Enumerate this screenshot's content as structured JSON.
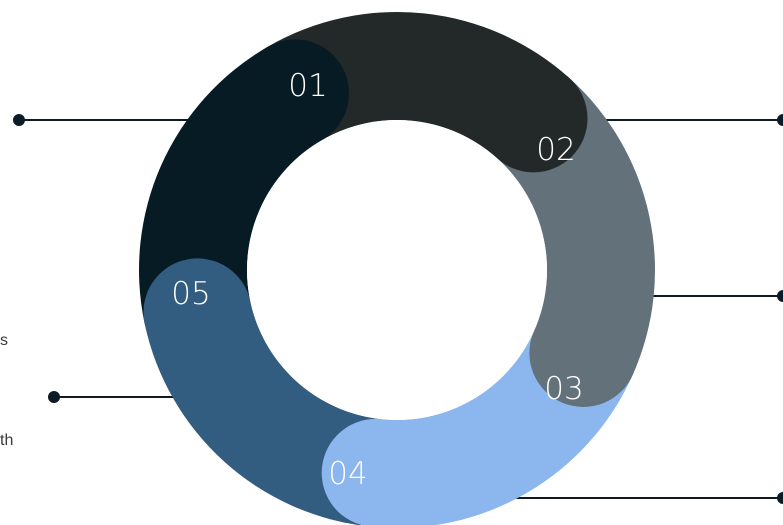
{
  "segments": [
    {
      "label": "01",
      "color": "#232829"
    },
    {
      "label": "02",
      "color": "#63717a"
    },
    {
      "label": "03",
      "color": "#8cb6ee"
    },
    {
      "label": "04",
      "color": "#325c80"
    },
    {
      "label": "05",
      "color": "#061b24"
    }
  ],
  "side_text": {
    "line1": "s",
    "line2": "th"
  },
  "colors": {
    "connector": "#0d1b26",
    "background": "#ffffff"
  }
}
